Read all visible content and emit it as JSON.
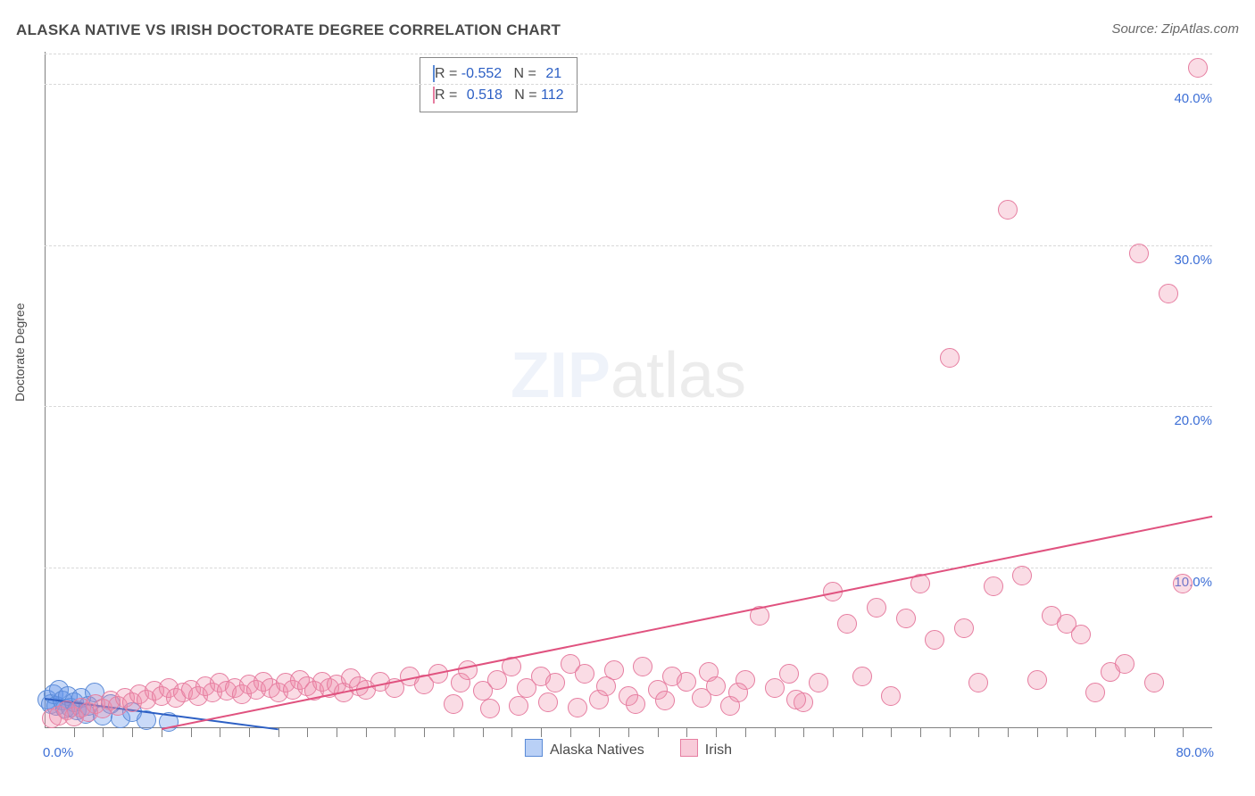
{
  "title": "ALASKA NATIVE VS IRISH DOCTORATE DEGREE CORRELATION CHART",
  "source": "Source: ZipAtlas.com",
  "ylabel": "Doctorate Degree",
  "watermark_a": "ZIP",
  "watermark_b": "atlas",
  "chart": {
    "type": "scatter",
    "xlim": [
      0,
      80
    ],
    "ylim": [
      0,
      42
    ],
    "x_start_label": "0.0%",
    "x_end_label": "80.0%",
    "yticks": [
      10,
      20,
      30,
      40
    ],
    "ytick_labels": [
      "10.0%",
      "20.0%",
      "30.0%",
      "40.0%"
    ],
    "xtick_minor_step": 2,
    "background_color": "#ffffff",
    "grid_color": "#d9d9d9",
    "axis_color": "#808080",
    "tick_label_color": "#3d6fd6",
    "marker_radius": 10,
    "series": [
      {
        "name": "Alaska Natives",
        "color_fill": "rgba(100,150,235,.35)",
        "color_stroke": "#5a8ad6",
        "reg_color": "#2c5fc4",
        "R": "-0.552",
        "N": "21",
        "regression": {
          "x1": 0,
          "y1": 1.9,
          "x2": 16,
          "y2": 0
        },
        "points": [
          [
            0.2,
            1.8
          ],
          [
            0.4,
            1.5
          ],
          [
            0.6,
            2.1
          ],
          [
            0.8,
            1.4
          ],
          [
            1.0,
            2.4
          ],
          [
            1.2,
            1.7
          ],
          [
            1.4,
            1.2
          ],
          [
            1.6,
            2.0
          ],
          [
            1.8,
            1.3
          ],
          [
            2.0,
            1.6
          ],
          [
            2.2,
            1.1
          ],
          [
            2.5,
            1.9
          ],
          [
            2.8,
            0.9
          ],
          [
            3.0,
            1.4
          ],
          [
            3.4,
            2.2
          ],
          [
            4.0,
            0.8
          ],
          [
            4.5,
            1.5
          ],
          [
            5.2,
            0.6
          ],
          [
            6.0,
            1.0
          ],
          [
            7.0,
            0.5
          ],
          [
            8.5,
            0.4
          ]
        ]
      },
      {
        "name": "Irish",
        "color_fill": "rgba(240,140,170,.3)",
        "color_stroke": "#e67da0",
        "reg_color": "#e0527f",
        "R": "0.518",
        "N": "112",
        "regression": {
          "x1": 8,
          "y1": 0,
          "x2": 80,
          "y2": 13.2
        },
        "points": [
          [
            0.5,
            0.6
          ],
          [
            1,
            0.8
          ],
          [
            1.5,
            1.1
          ],
          [
            2,
            0.7
          ],
          [
            2.5,
            1.3
          ],
          [
            3,
            1.0
          ],
          [
            3.5,
            1.5
          ],
          [
            4,
            1.2
          ],
          [
            4.5,
            1.7
          ],
          [
            5,
            1.4
          ],
          [
            5.5,
            1.9
          ],
          [
            6,
            1.6
          ],
          [
            6.5,
            2.1
          ],
          [
            7,
            1.8
          ],
          [
            7.5,
            2.3
          ],
          [
            8,
            2.0
          ],
          [
            8.5,
            2.5
          ],
          [
            9,
            1.9
          ],
          [
            9.5,
            2.2
          ],
          [
            10,
            2.4
          ],
          [
            10.5,
            2.0
          ],
          [
            11,
            2.6
          ],
          [
            11.5,
            2.2
          ],
          [
            12,
            2.8
          ],
          [
            12.5,
            2.3
          ],
          [
            13,
            2.5
          ],
          [
            13.5,
            2.1
          ],
          [
            14,
            2.7
          ],
          [
            14.5,
            2.4
          ],
          [
            15,
            2.9
          ],
          [
            15.5,
            2.5
          ],
          [
            16,
            2.2
          ],
          [
            16.5,
            2.8
          ],
          [
            17,
            2.4
          ],
          [
            17.5,
            3.0
          ],
          [
            18,
            2.6
          ],
          [
            18.5,
            2.3
          ],
          [
            19,
            2.9
          ],
          [
            19.5,
            2.5
          ],
          [
            20,
            2.7
          ],
          [
            20.5,
            2.2
          ],
          [
            21,
            3.1
          ],
          [
            21.5,
            2.6
          ],
          [
            22,
            2.4
          ],
          [
            23,
            2.9
          ],
          [
            24,
            2.5
          ],
          [
            25,
            3.2
          ],
          [
            26,
            2.7
          ],
          [
            27,
            3.4
          ],
          [
            28,
            1.5
          ],
          [
            28.5,
            2.8
          ],
          [
            29,
            3.6
          ],
          [
            30,
            2.3
          ],
          [
            30.5,
            1.2
          ],
          [
            31,
            3.0
          ],
          [
            32,
            3.8
          ],
          [
            32.5,
            1.4
          ],
          [
            33,
            2.5
          ],
          [
            34,
            3.2
          ],
          [
            34.5,
            1.6
          ],
          [
            35,
            2.8
          ],
          [
            36,
            4.0
          ],
          [
            36.5,
            1.3
          ],
          [
            37,
            3.4
          ],
          [
            38,
            1.8
          ],
          [
            38.5,
            2.6
          ],
          [
            39,
            3.6
          ],
          [
            40,
            2.0
          ],
          [
            40.5,
            1.5
          ],
          [
            41,
            3.8
          ],
          [
            42,
            2.4
          ],
          [
            42.5,
            1.7
          ],
          [
            43,
            3.2
          ],
          [
            44,
            2.9
          ],
          [
            45,
            1.9
          ],
          [
            45.5,
            3.5
          ],
          [
            46,
            2.6
          ],
          [
            47,
            1.4
          ],
          [
            48,
            3.0
          ],
          [
            49,
            7.0
          ],
          [
            50,
            2.5
          ],
          [
            51,
            3.4
          ],
          [
            52,
            1.6
          ],
          [
            53,
            2.8
          ],
          [
            54,
            8.5
          ],
          [
            55,
            6.5
          ],
          [
            56,
            3.2
          ],
          [
            57,
            7.5
          ],
          [
            58,
            2.0
          ],
          [
            59,
            6.8
          ],
          [
            60,
            9.0
          ],
          [
            61,
            5.5
          ],
          [
            62,
            23.0
          ],
          [
            63,
            6.2
          ],
          [
            64,
            2.8
          ],
          [
            65,
            8.8
          ],
          [
            66,
            32.2
          ],
          [
            67,
            9.5
          ],
          [
            68,
            3.0
          ],
          [
            69,
            7.0
          ],
          [
            70,
            6.5
          ],
          [
            72,
            2.2
          ],
          [
            73,
            3.5
          ],
          [
            75,
            29.5
          ],
          [
            76,
            2.8
          ],
          [
            77,
            27.0
          ],
          [
            78,
            9.0
          ],
          [
            79,
            41.0
          ],
          [
            71,
            5.8
          ],
          [
            74,
            4.0
          ],
          [
            47.5,
            2.2
          ],
          [
            51.5,
            1.8
          ]
        ]
      }
    ]
  },
  "legend": {
    "a": "Alaska Natives",
    "b": "Irish"
  },
  "rbox": {
    "r_label": "R =",
    "n_label": "N =",
    "rows": [
      {
        "sw": "blue",
        "r": "-0.552",
        "n": "21"
      },
      {
        "sw": "pink",
        "r": "0.518",
        "n": "112"
      }
    ]
  }
}
